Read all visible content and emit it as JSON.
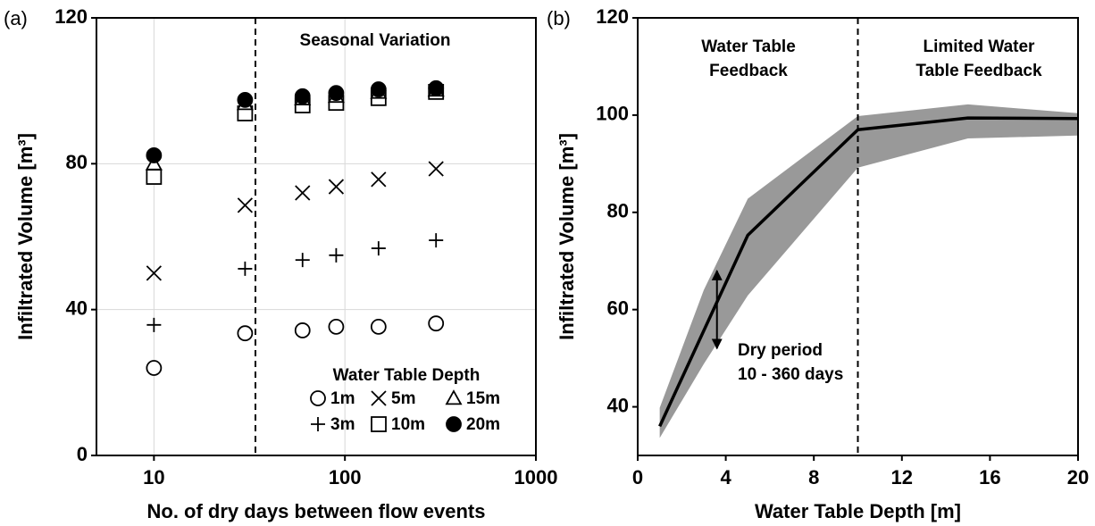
{
  "chart_data": [
    {
      "type": "scatter",
      "panel_label": "(a)",
      "x_label": "No. of dry days between flow events",
      "y_label": "Infiltrated Volume [m³]",
      "xlog": true,
      "xlim": [
        5,
        1000
      ],
      "xticks": [
        10,
        100,
        1000
      ],
      "ylim": [
        0,
        120
      ],
      "yticks": [
        0,
        40,
        80,
        120
      ],
      "grid": true,
      "vline": 34,
      "annotations": [
        "Seasonal Variation"
      ],
      "legend_title": "Water Table Depth",
      "x": [
        10,
        30,
        60,
        90,
        150,
        300
      ],
      "series": [
        {
          "name": "1m",
          "marker": "circle-open",
          "color": "#000000",
          "values": [
            24.0,
            33.5,
            34.3,
            35.3,
            35.3,
            36.2
          ]
        },
        {
          "name": "3m",
          "marker": "plus",
          "color": "#000000",
          "values": [
            35.8,
            51.2,
            53.6,
            54.9,
            56.8,
            59.0
          ]
        },
        {
          "name": "5m",
          "marker": "cross",
          "color": "#000000",
          "values": [
            50.0,
            68.6,
            72.0,
            73.7,
            75.7,
            78.6
          ]
        },
        {
          "name": "10m",
          "marker": "square-open",
          "color": "#000000",
          "values": [
            76.4,
            93.8,
            96.0,
            96.7,
            98.0,
            99.7
          ]
        },
        {
          "name": "15m",
          "marker": "triangle-open",
          "color": "#000000",
          "values": [
            80.0,
            96.5,
            97.8,
            98.5,
            99.6,
            100.2
          ]
        },
        {
          "name": "20m",
          "marker": "circle-filled",
          "color": "#000000",
          "values": [
            82.3,
            97.5,
            98.5,
            99.4,
            100.4,
            100.7
          ]
        }
      ]
    },
    {
      "type": "line",
      "panel_label": "(b)",
      "x_label": "Water Table Depth [m]",
      "y_label": "Infiltrated Volume [m³]",
      "xlim": [
        0,
        20
      ],
      "xticks": [
        0,
        4,
        8,
        12,
        16,
        20
      ],
      "ylim": [
        30,
        120
      ],
      "yticks": [
        40,
        60,
        80,
        100,
        120
      ],
      "vline": 10,
      "annotations": [
        [
          "Water Table",
          "Feedback"
        ],
        [
          "Limited Water",
          "Table Feedback"
        ],
        [
          "Dry period",
          "10 - 360 days"
        ]
      ],
      "arrow": {
        "x": 3.6,
        "y": [
          52,
          68
        ]
      },
      "x": [
        1,
        5,
        10,
        15,
        20
      ],
      "series": [
        {
          "color": "#000000",
          "values": [
            36.0,
            75.3,
            97.0,
            99.4,
            99.3
          ]
        }
      ],
      "band": {
        "color": "#999999",
        "x": [
          1,
          3,
          5,
          10,
          15,
          20
        ],
        "upper": [
          39.8,
          64.0,
          82.8,
          99.8,
          102.2,
          100.4
        ],
        "lower": [
          33.6,
          48.8,
          62.9,
          89.2,
          95.2,
          95.8
        ]
      }
    }
  ]
}
